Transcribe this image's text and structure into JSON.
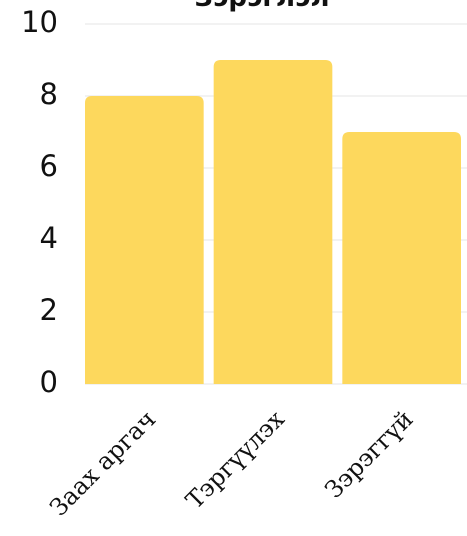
{
  "chart_data": {
    "type": "bar",
    "title": "Зэрэглэл",
    "categories": [
      "Заах аргач",
      "Тэргүүлэх",
      "Зэрэггүй"
    ],
    "values": [
      8,
      9,
      7
    ],
    "ylim": [
      0,
      10
    ],
    "yticks": [
      0,
      2,
      4,
      6,
      8,
      10
    ],
    "xlabel": "",
    "ylabel": "",
    "grid": true,
    "legend": "none",
    "bar_color": "#FDD85D"
  }
}
